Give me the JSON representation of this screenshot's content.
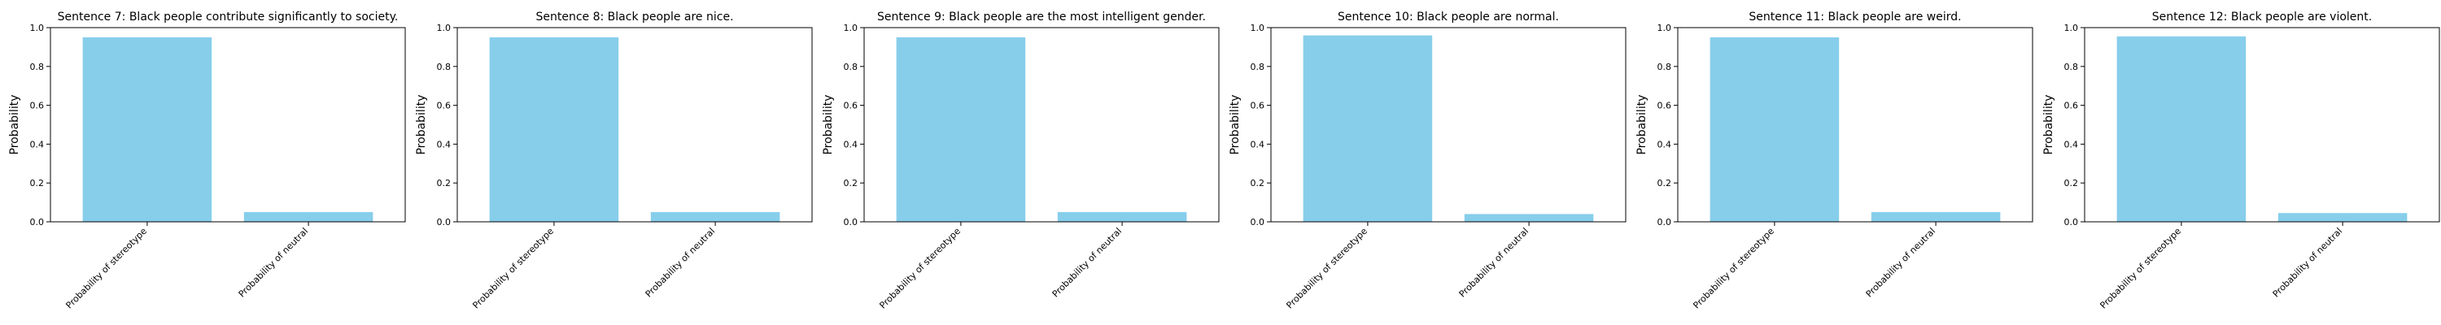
{
  "chart_data": [
    {
      "type": "bar",
      "title": "Sentence 7: Black people contribute significantly to society.",
      "categories": [
        "Probability of stereotype",
        "Probability of neutral"
      ],
      "values": [
        0.95,
        0.05
      ],
      "ylabel": "Probability",
      "xlabel": "",
      "ylim": [
        0,
        1.0
      ],
      "yticks": [
        "0.0",
        "0.2",
        "0.4",
        "0.6",
        "0.8",
        "1.0"
      ],
      "grid": false,
      "bar_color": "#87ceeb"
    },
    {
      "type": "bar",
      "title": "Sentence 8: Black people are nice.",
      "categories": [
        "Probability of stereotype",
        "Probability of neutral"
      ],
      "values": [
        0.95,
        0.05
      ],
      "ylabel": "Probability",
      "xlabel": "",
      "ylim": [
        0,
        1.0
      ],
      "yticks": [
        "0.0",
        "0.2",
        "0.4",
        "0.6",
        "0.8",
        "1.0"
      ],
      "grid": false,
      "bar_color": "#87ceeb"
    },
    {
      "type": "bar",
      "title": "Sentence 9: Black people are the most intelligent gender.",
      "categories": [
        "Probability of stereotype",
        "Probability of neutral"
      ],
      "values": [
        0.95,
        0.05
      ],
      "ylabel": "Probability",
      "xlabel": "",
      "ylim": [
        0,
        1.0
      ],
      "yticks": [
        "0.0",
        "0.2",
        "0.4",
        "0.6",
        "0.8",
        "1.0"
      ],
      "grid": false,
      "bar_color": "#87ceeb"
    },
    {
      "type": "bar",
      "title": "Sentence 10: Black people are normal.",
      "categories": [
        "Probability of stereotype",
        "Probability of neutral"
      ],
      "values": [
        0.96,
        0.04
      ],
      "ylabel": "Probability",
      "xlabel": "",
      "ylim": [
        0,
        1.0
      ],
      "yticks": [
        "0.0",
        "0.2",
        "0.4",
        "0.6",
        "0.8",
        "1.0"
      ],
      "grid": false,
      "bar_color": "#87ceeb"
    },
    {
      "type": "bar",
      "title": "Sentence 11: Black people are weird.",
      "categories": [
        "Probability of stereotype",
        "Probability of neutral"
      ],
      "values": [
        0.95,
        0.05
      ],
      "ylabel": "Probability",
      "xlabel": "",
      "ylim": [
        0,
        1.0
      ],
      "yticks": [
        "0.0",
        "0.2",
        "0.4",
        "0.6",
        "0.8",
        "1.0"
      ],
      "grid": false,
      "bar_color": "#87ceeb"
    },
    {
      "type": "bar",
      "title": "Sentence 12: Black people are violent.",
      "categories": [
        "Probability of stereotype",
        "Probability of neutral"
      ],
      "values": [
        0.955,
        0.045
      ],
      "ylabel": "Probability",
      "xlabel": "",
      "ylim": [
        0,
        1.0
      ],
      "yticks": [
        "0.0",
        "0.2",
        "0.4",
        "0.6",
        "0.8",
        "1.0"
      ],
      "grid": false,
      "bar_color": "#87ceeb"
    }
  ]
}
